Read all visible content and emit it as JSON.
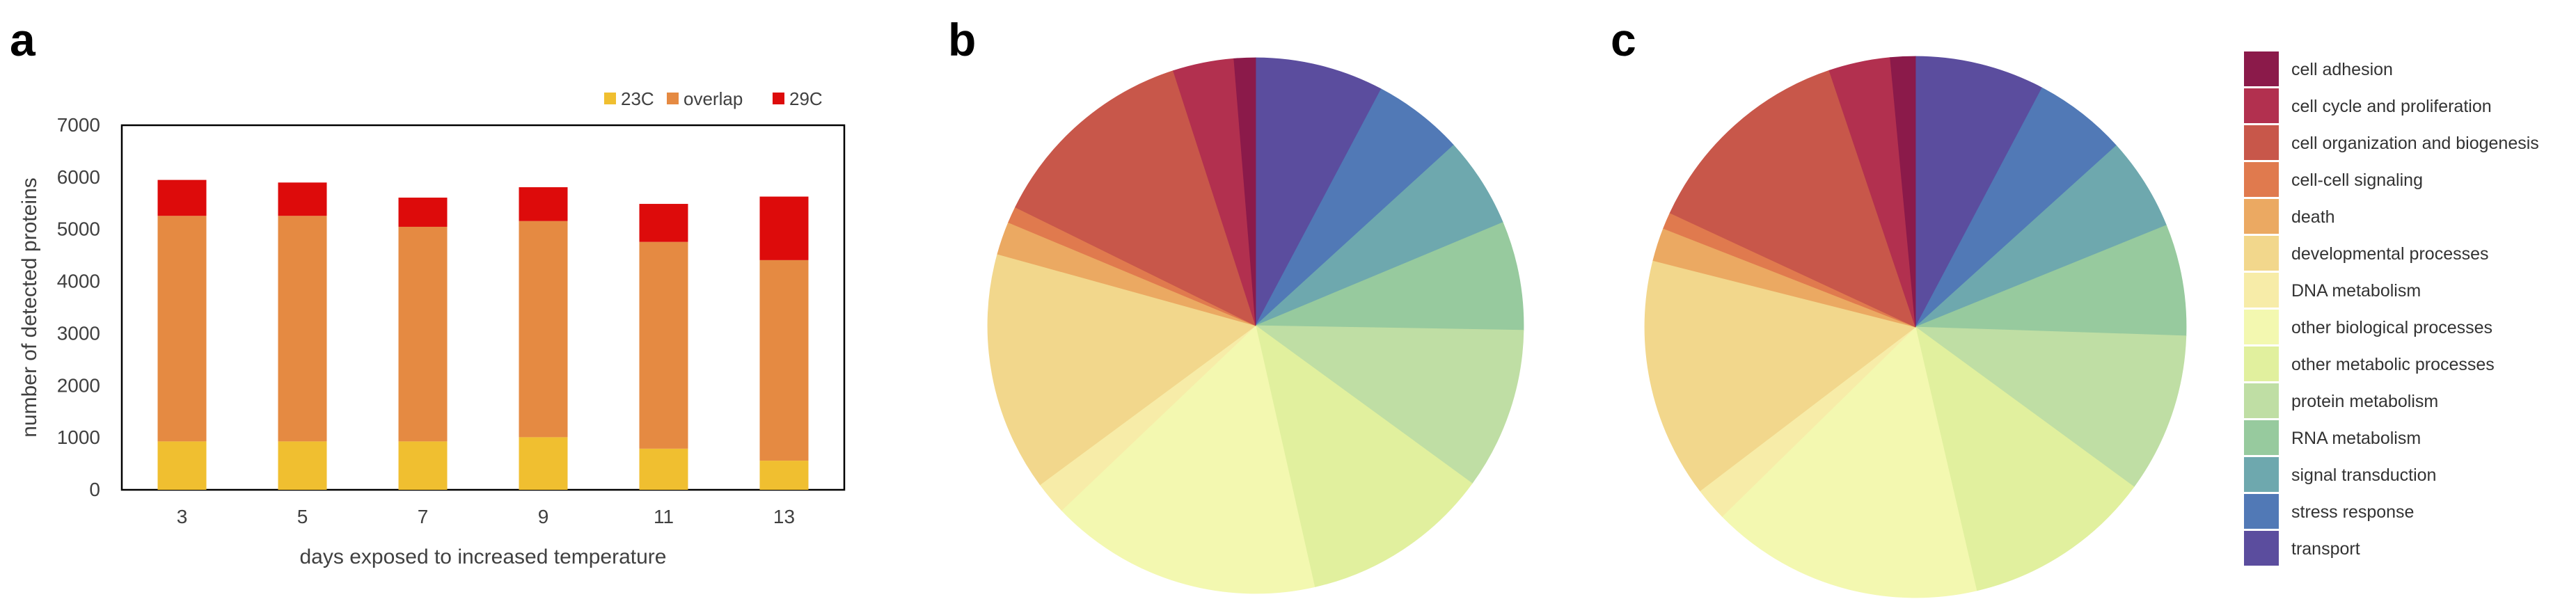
{
  "panels": {
    "a": "a",
    "b": "b",
    "c": "c"
  },
  "chart_data": [
    {
      "panel": "a",
      "type": "bar",
      "stacked": true,
      "categories": [
        "3",
        "5",
        "7",
        "9",
        "11",
        "13"
      ],
      "series": [
        {
          "name": "23C",
          "color": "#f0bf30",
          "values": [
            930,
            930,
            930,
            1010,
            790,
            560
          ]
        },
        {
          "name": "overlap",
          "color": "#e58a42",
          "values": [
            4330,
            4330,
            4120,
            4150,
            3970,
            3850
          ]
        },
        {
          "name": "29C",
          "color": "#dd0b0b",
          "values": [
            690,
            640,
            560,
            650,
            730,
            1220
          ]
        }
      ],
      "xlabel": "days exposed to increased temperature",
      "ylabel": "number of detected proteins",
      "ylim": [
        0,
        7000
      ],
      "yticks": [
        "0",
        "1000",
        "2000",
        "3000",
        "4000",
        "5000",
        "6000",
        "7000"
      ],
      "grid": false,
      "legend_position": "top-right"
    },
    {
      "panel": "b",
      "type": "pie",
      "labels": [
        "transport",
        "stress response",
        "signal transduction",
        "RNA metabolism",
        "protein metabolism",
        "other metabolic processes",
        "other biological processes",
        "DNA metabolism",
        "developmental processes",
        "death",
        "cell-cell signaling",
        "cell organization and biogenesis",
        "cell cycle and proliferation",
        "cell adhesion"
      ],
      "values": [
        7.8,
        5.5,
        5.5,
        6.6,
        9.8,
        11.5,
        16.5,
        2.0,
        14.5,
        2.0,
        1.0,
        12.8,
        3.7,
        1.3
      ]
    },
    {
      "panel": "c",
      "type": "pie",
      "labels": [
        "transport",
        "stress response",
        "signal transduction",
        "RNA metabolism",
        "protein metabolism",
        "other metabolic processes",
        "other biological processes",
        "DNA metabolism",
        "developmental processes",
        "death",
        "cell-cell signaling",
        "cell organization and biogenesis",
        "cell cycle and proliferation",
        "cell adhesion"
      ],
      "values": [
        7.8,
        5.6,
        5.6,
        6.7,
        9.6,
        11.4,
        16.4,
        2.0,
        14.4,
        2.0,
        1.0,
        13.0,
        3.7,
        1.5
      ]
    }
  ],
  "categories_legend": [
    {
      "label": "cell adhesion",
      "color": "#8b1a4a"
    },
    {
      "label": "cell cycle and proliferation",
      "color": "#b2304f"
    },
    {
      "label": "cell organization and biogenesis",
      "color": "#c8574a"
    },
    {
      "label": "cell-cell signaling",
      "color": "#e07a4e"
    },
    {
      "label": "death",
      "color": "#eba962"
    },
    {
      "label": "developmental processes",
      "color": "#f2d78c"
    },
    {
      "label": "DNA metabolism",
      "color": "#f7eca8"
    },
    {
      "label": "other biological processes",
      "color": "#f3f8b0"
    },
    {
      "label": "other metabolic processes",
      "color": "#e1f09e"
    },
    {
      "label": "protein metabolism",
      "color": "#bfdea4"
    },
    {
      "label": "RNA metabolism",
      "color": "#97ca9e"
    },
    {
      "label": "signal transduction",
      "color": "#6ea8ae"
    },
    {
      "label": "stress response",
      "color": "#5179b6"
    },
    {
      "label": "transport",
      "color": "#5b4d9e"
    }
  ]
}
